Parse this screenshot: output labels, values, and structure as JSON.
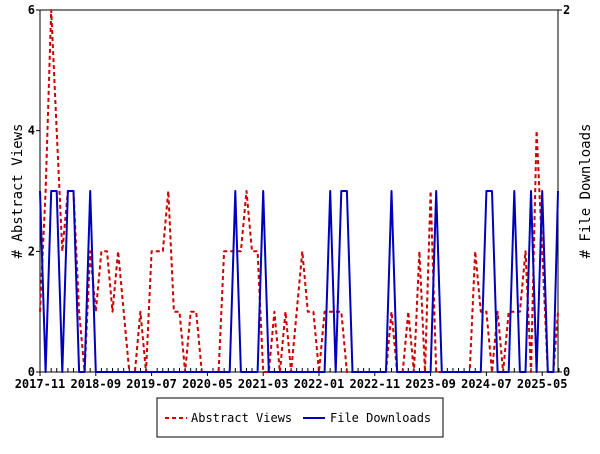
{
  "chart_data": {
    "type": "line",
    "ylabel_left": "# Abstract Views",
    "ylabel_right": "# File Downloads",
    "ylim_left": [
      0,
      6
    ],
    "ylim_right": [
      0,
      2
    ],
    "yticks_left": [
      "0",
      "2",
      "4",
      "6"
    ],
    "yticks_right": [
      "0",
      "2"
    ],
    "x_start": "2017-11",
    "x_ticks": [
      "2017-11",
      "2018-09",
      "2019-07",
      "2020-05",
      "2021-03",
      "2022-01",
      "2022-11",
      "2023-09",
      "2024-07",
      "2025-05"
    ],
    "x_tick_interval_months": 10,
    "grid": false,
    "legend_position": "bottom-center",
    "series": [
      {
        "name": "Abstract Views",
        "axis": "left",
        "color": "#cc0000",
        "style": "dashed",
        "values": [
          1,
          3,
          6,
          4,
          2,
          3,
          3,
          1,
          0,
          2,
          1,
          2,
          2,
          1,
          2,
          1,
          0,
          0,
          1,
          0,
          2,
          2,
          2,
          3,
          1,
          1,
          0,
          1,
          1,
          0,
          0,
          0,
          0,
          2,
          2,
          2,
          2,
          3,
          2,
          2,
          0,
          0,
          1,
          0,
          1,
          0,
          1,
          2,
          1,
          1,
          0,
          1,
          1,
          1,
          1,
          0,
          0,
          0,
          0,
          0,
          0,
          0,
          0,
          1,
          0,
          0,
          1,
          0,
          2,
          0,
          3,
          0,
          0,
          0,
          0,
          0,
          0,
          0,
          2,
          1,
          1,
          0,
          1,
          0,
          1,
          1,
          1,
          2,
          0,
          4,
          2,
          0,
          0,
          1
        ]
      },
      {
        "name": "File Downloads",
        "axis": "right",
        "color": "#0000bb",
        "style": "solid",
        "values": [
          1,
          0,
          1,
          1,
          0,
          1,
          1,
          0,
          0,
          1,
          0,
          0,
          0,
          0,
          0,
          0,
          0,
          0,
          0,
          0,
          0,
          0,
          0,
          0,
          0,
          0,
          0,
          0,
          0,
          0,
          0,
          0,
          0,
          0,
          0,
          1,
          0,
          0,
          0,
          0,
          1,
          0,
          0,
          0,
          0,
          0,
          0,
          0,
          0,
          0,
          0,
          0,
          1,
          0,
          1,
          1,
          0,
          0,
          0,
          0,
          0,
          0,
          0,
          1,
          0,
          0,
          0,
          0,
          0,
          0,
          0,
          1,
          0,
          0,
          0,
          0,
          0,
          0,
          0,
          0,
          1,
          1,
          0,
          0,
          0,
          1,
          0,
          0,
          1,
          0,
          1,
          0,
          0,
          1
        ]
      }
    ]
  }
}
